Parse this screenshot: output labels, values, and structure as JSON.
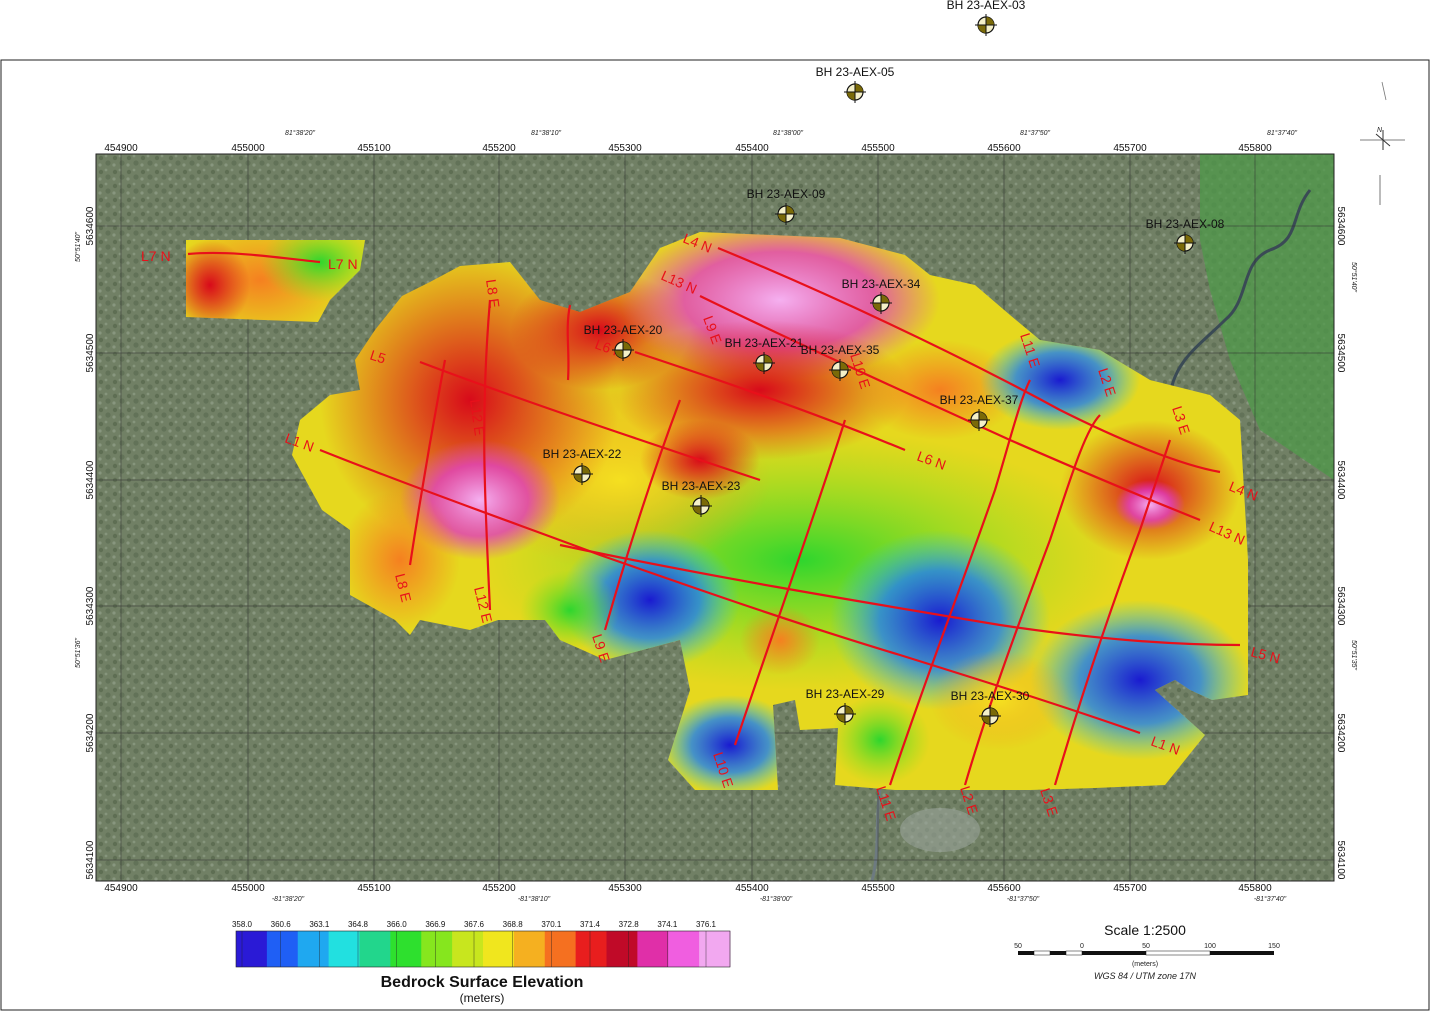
{
  "map": {
    "easting_ticks": [
      "454900",
      "455000",
      "455100",
      "455200",
      "455300",
      "455400",
      "455500",
      "455600",
      "455700",
      "455800"
    ],
    "northing_ticks": [
      "5634600",
      "5634500",
      "5634400",
      "5634300",
      "5634200",
      "5634100"
    ],
    "top_degree_labels": [
      "81°38'20\"",
      "81°38'10\"",
      "81°38'00\"",
      "81°37'50\"",
      "81°37'40\""
    ],
    "bottom_degree_labels": [
      "-81°38'20\"",
      "-81°38'10\"",
      "-81°38'00\"",
      "-81°37'50\"",
      "-81°37'40\""
    ],
    "side_degree_labels": [
      "50°51'40\"",
      "50°51'36\""
    ],
    "right_degree_labels": [
      "50°51'40\"",
      "50°51'35\""
    ],
    "north_arrow_label": "N"
  },
  "boreholes": [
    {
      "id": "BH 23-AEX-03"
    },
    {
      "id": "BH 23-AEX-05"
    },
    {
      "id": "BH 23-AEX-09"
    },
    {
      "id": "BH 23-AEX-08"
    },
    {
      "id": "BH 23-AEX-34"
    },
    {
      "id": "BH 23-AEX-20"
    },
    {
      "id": "BH 23-AEX-21"
    },
    {
      "id": "BH 23-AEX-35"
    },
    {
      "id": "BH 23-AEX-37"
    },
    {
      "id": "BH 23-AEX-22"
    },
    {
      "id": "BH 23-AEX-23"
    },
    {
      "id": "BH 23-AEX-29"
    },
    {
      "id": "BH 23-AEX-30"
    }
  ],
  "survey_lines": {
    "labels": [
      "L7 N",
      "L7 N",
      "L4 N",
      "L4 N",
      "L13 N",
      "L13 N",
      "L6 N",
      "L6 N",
      "L5",
      "L5 N",
      "L1 N",
      "L1 N",
      "L8 E",
      "L8 E",
      "L12 E",
      "L9 E",
      "L9 E",
      "L10 E",
      "L10 E",
      "L11 E",
      "L11 E",
      "L2 E",
      "L2 E",
      "L3 E",
      "L3 E",
      "L12 E"
    ],
    "line_color": "#e8101a"
  },
  "legend": {
    "title": "Bedrock Surface Elevation",
    "unit": "(meters)",
    "values": [
      "358.0",
      "360.6",
      "363.1",
      "364.8",
      "366.0",
      "366.9",
      "367.6",
      "368.8",
      "370.1",
      "371.4",
      "372.8",
      "374.1",
      "376.1"
    ],
    "colors": [
      "#2a1ad6",
      "#1f5ff5",
      "#1fa8f0",
      "#22e0e0",
      "#22d68c",
      "#2ee02e",
      "#86e61e",
      "#c8e61e",
      "#f0e61e",
      "#f5b020",
      "#f57020",
      "#e81e1e",
      "#c00a28",
      "#e02fa8",
      "#f05ee0",
      "#f2a8f0"
    ]
  },
  "scale_bar": {
    "title": "Scale 1:2500",
    "ticks": [
      "50",
      "0",
      "50",
      "100",
      "150"
    ],
    "unit": "(meters)",
    "projection": "WGS 84 / UTM zone 17N"
  }
}
